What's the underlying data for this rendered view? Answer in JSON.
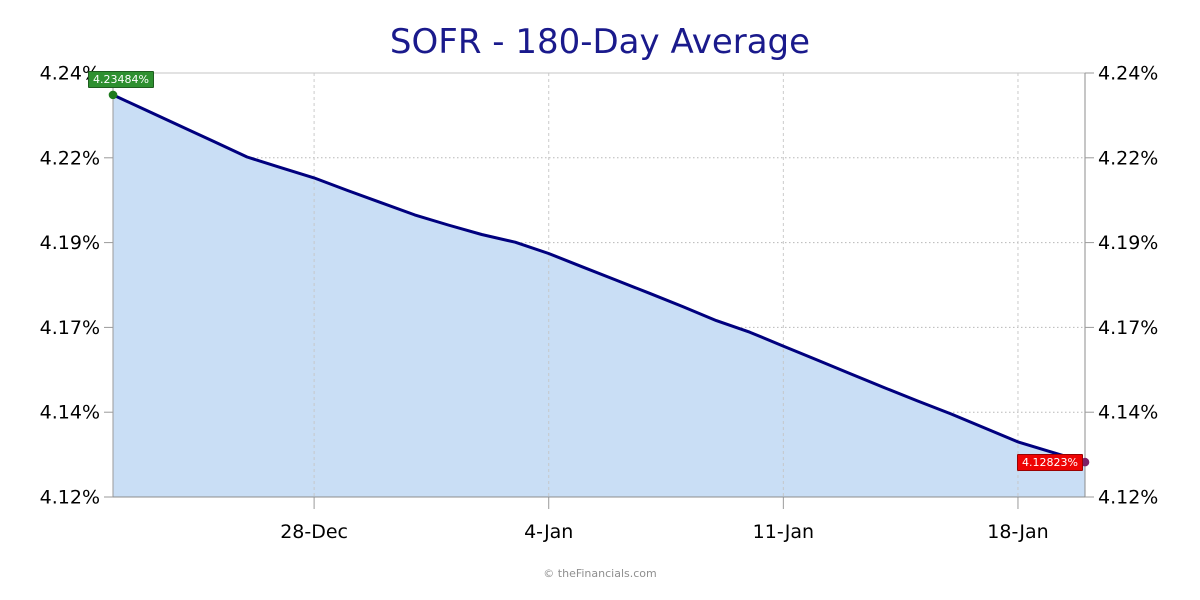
{
  "title": {
    "text": "SOFR - 180-Day Average",
    "color": "#1a1a8c"
  },
  "footer": {
    "text": "© theFinancials.com"
  },
  "chart_data": {
    "type": "area",
    "title": "SOFR - 180-Day Average",
    "xlabel": "",
    "ylabel": "",
    "legend": "none",
    "grid": true,
    "y_axis_sides": "both",
    "y_ticks": [
      {
        "label": "4.24%",
        "value": 4.24
      },
      {
        "label": "4.22%",
        "value": 4.22
      },
      {
        "label": "4.19%",
        "value": 4.19
      },
      {
        "label": "4.17%",
        "value": 4.17
      },
      {
        "label": "4.14%",
        "value": 4.14
      },
      {
        "label": "4.12%",
        "value": 4.12
      }
    ],
    "x_ticks": [
      {
        "label": "28-Dec",
        "day": 6
      },
      {
        "label": "4-Jan",
        "day": 13
      },
      {
        "label": "11-Jan",
        "day": 20
      },
      {
        "label": "18-Jan",
        "day": 27
      }
    ],
    "line_color": "#00007e",
    "fill_color": "#c9def5",
    "start_marker": {
      "label": "4.23484%",
      "badge_color": "#2e9030",
      "dot_color": "#1d7a1d"
    },
    "end_marker": {
      "label": "4.12823%",
      "badge_color": "#ee0404",
      "dot_color": "#7c2066"
    },
    "series": [
      {
        "name": "SOFR 180-Day Average",
        "points": [
          {
            "date": "22-Dec",
            "day": 0,
            "value": 4.23484
          },
          {
            "date": "23-Dec",
            "day": 1,
            "value": 4.23118
          },
          {
            "date": "24-Dec",
            "day": 2,
            "value": 4.22752
          },
          {
            "date": "25-Dec",
            "day": 3,
            "value": 4.22386
          },
          {
            "date": "26-Dec",
            "day": 4,
            "value": 4.2202
          },
          {
            "date": "27-Dec",
            "day": 5,
            "value": 4.21654
          },
          {
            "date": "28-Dec",
            "day": 6,
            "value": 4.21288
          },
          {
            "date": "29-Dec",
            "day": 7,
            "value": 4.20843
          },
          {
            "date": "30-Dec",
            "day": 8,
            "value": 4.20411
          },
          {
            "date": "31-Dec",
            "day": 9,
            "value": 4.19979
          },
          {
            "date": "1-Jan",
            "day": 10,
            "value": 4.19621
          },
          {
            "date": "2-Jan",
            "day": 11,
            "value": 4.19286
          },
          {
            "date": "3-Jan",
            "day": 12,
            "value": 4.19014
          },
          {
            "date": "4-Jan",
            "day": 13,
            "value": 4.18742
          },
          {
            "date": "5-Jan",
            "day": 14,
            "value": 4.1843
          },
          {
            "date": "6-Jan",
            "day": 15,
            "value": 4.18118
          },
          {
            "date": "7-Jan",
            "day": 16,
            "value": 4.17806
          },
          {
            "date": "8-Jan",
            "day": 17,
            "value": 4.1749
          },
          {
            "date": "9-Jan",
            "day": 18,
            "value": 4.1716
          },
          {
            "date": "10-Jan",
            "day": 19,
            "value": 4.1683
          },
          {
            "date": "11-Jan",
            "day": 20,
            "value": 4.1634
          },
          {
            "date": "12-Jan",
            "day": 21,
            "value": 4.15851
          },
          {
            "date": "13-Jan",
            "day": 22,
            "value": 4.15362
          },
          {
            "date": "14-Jan",
            "day": 23,
            "value": 4.14873
          },
          {
            "date": "15-Jan",
            "day": 24,
            "value": 4.144
          },
          {
            "date": "16-Jan",
            "day": 25,
            "value": 4.1396
          },
          {
            "date": "17-Jan",
            "day": 26,
            "value": 4.1363
          },
          {
            "date": "18-Jan",
            "day": 27,
            "value": 4.133
          },
          {
            "date": "19-Jan",
            "day": 28,
            "value": 4.1306
          },
          {
            "date": "20-Jan",
            "day": 29,
            "value": 4.12823
          }
        ]
      }
    ]
  }
}
